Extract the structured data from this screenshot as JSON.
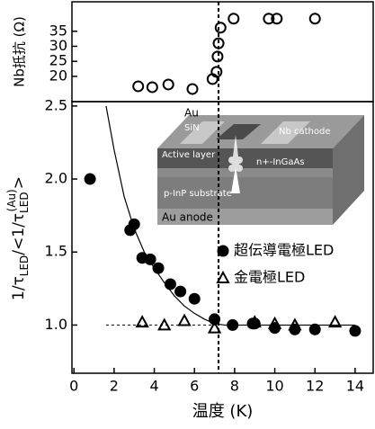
{
  "chart_data": [
    {
      "type": "scatter",
      "ylabel": "Nb抵抗 (Ω)",
      "xlim": [
        -0.1,
        14.9
      ],
      "ylim": [
        11.6,
        44.8
      ],
      "yticks": [
        20,
        25,
        30,
        35
      ],
      "vlines": [
        7.2
      ],
      "series": [
        {
          "marker": "open-circle",
          "color": "#000000",
          "x": [
            3.2,
            3.9,
            4.7,
            5.9,
            6.9,
            7.1,
            7.15,
            7.2,
            7.3,
            7.95,
            9.7,
            10.1,
            12.0
          ],
          "values": [
            16.7,
            16.4,
            17.3,
            15.8,
            19.1,
            21.5,
            26.6,
            31.0,
            36.2,
            39.2,
            39.2,
            39.2,
            39.2
          ]
        }
      ]
    },
    {
      "type": "scatter",
      "xlabel": "温度 (K)",
      "ylabel_parts": [
        "1/τ",
        "LED",
        "/<1/τ",
        "LED",
        "(Au)",
        ">"
      ],
      "xlim": [
        -0.1,
        14.9
      ],
      "ylim": [
        0.67,
        2.53
      ],
      "xticks": [
        0,
        2,
        4,
        6,
        8,
        10,
        12,
        14
      ],
      "yticks": [
        {
          "value": 1,
          "label": "1.0"
        },
        1.5,
        {
          "value": 2,
          "label": "2.0"
        },
        2.5
      ],
      "vlines": [
        7.2
      ],
      "hlines": [
        1
      ],
      "fit_curve": {
        "x": [
          1.6,
          2.0,
          2.5,
          3.0,
          3.5,
          4.0,
          4.5,
          5.0,
          5.5,
          6.0,
          6.5,
          7.0,
          7.5,
          14.0
        ],
        "values": [
          2.5,
          2.2,
          1.88,
          1.66,
          1.5,
          1.39,
          1.29,
          1.2,
          1.13,
          1.08,
          1.04,
          1.01,
          1.0,
          1.0
        ]
      },
      "series": [
        {
          "name": "超伝導電極LED",
          "marker": "filled-circle",
          "color": "#000000",
          "x": [
            0.8,
            2.8,
            3.0,
            3.4,
            3.8,
            4.2,
            4.8,
            5.3,
            6.0,
            7.0,
            7.9,
            8.9,
            9.0,
            10.0,
            11.0,
            12.0,
            14.0
          ],
          "values": [
            2.0,
            1.65,
            1.69,
            1.46,
            1.45,
            1.39,
            1.28,
            1.23,
            1.18,
            1.04,
            1.0,
            1.01,
            1.01,
            0.98,
            0.97,
            0.97,
            0.96
          ]
        },
        {
          "name": "金電極LED",
          "marker": "open-triangle",
          "color": "#000000",
          "x": [
            3.4,
            4.5,
            5.5,
            7.0,
            9.0,
            10.0,
            11.0,
            13.0
          ],
          "values": [
            1.02,
            1.0,
            1.03,
            0.98,
            1.02,
            1.01,
            1.0,
            1.02
          ]
        }
      ],
      "inset": {
        "labels": [
          "Au",
          "SiN",
          "Nb cathode",
          "Active layer",
          "n+-InGaAs",
          "p-InP substrate",
          "Au anode"
        ]
      }
    }
  ]
}
